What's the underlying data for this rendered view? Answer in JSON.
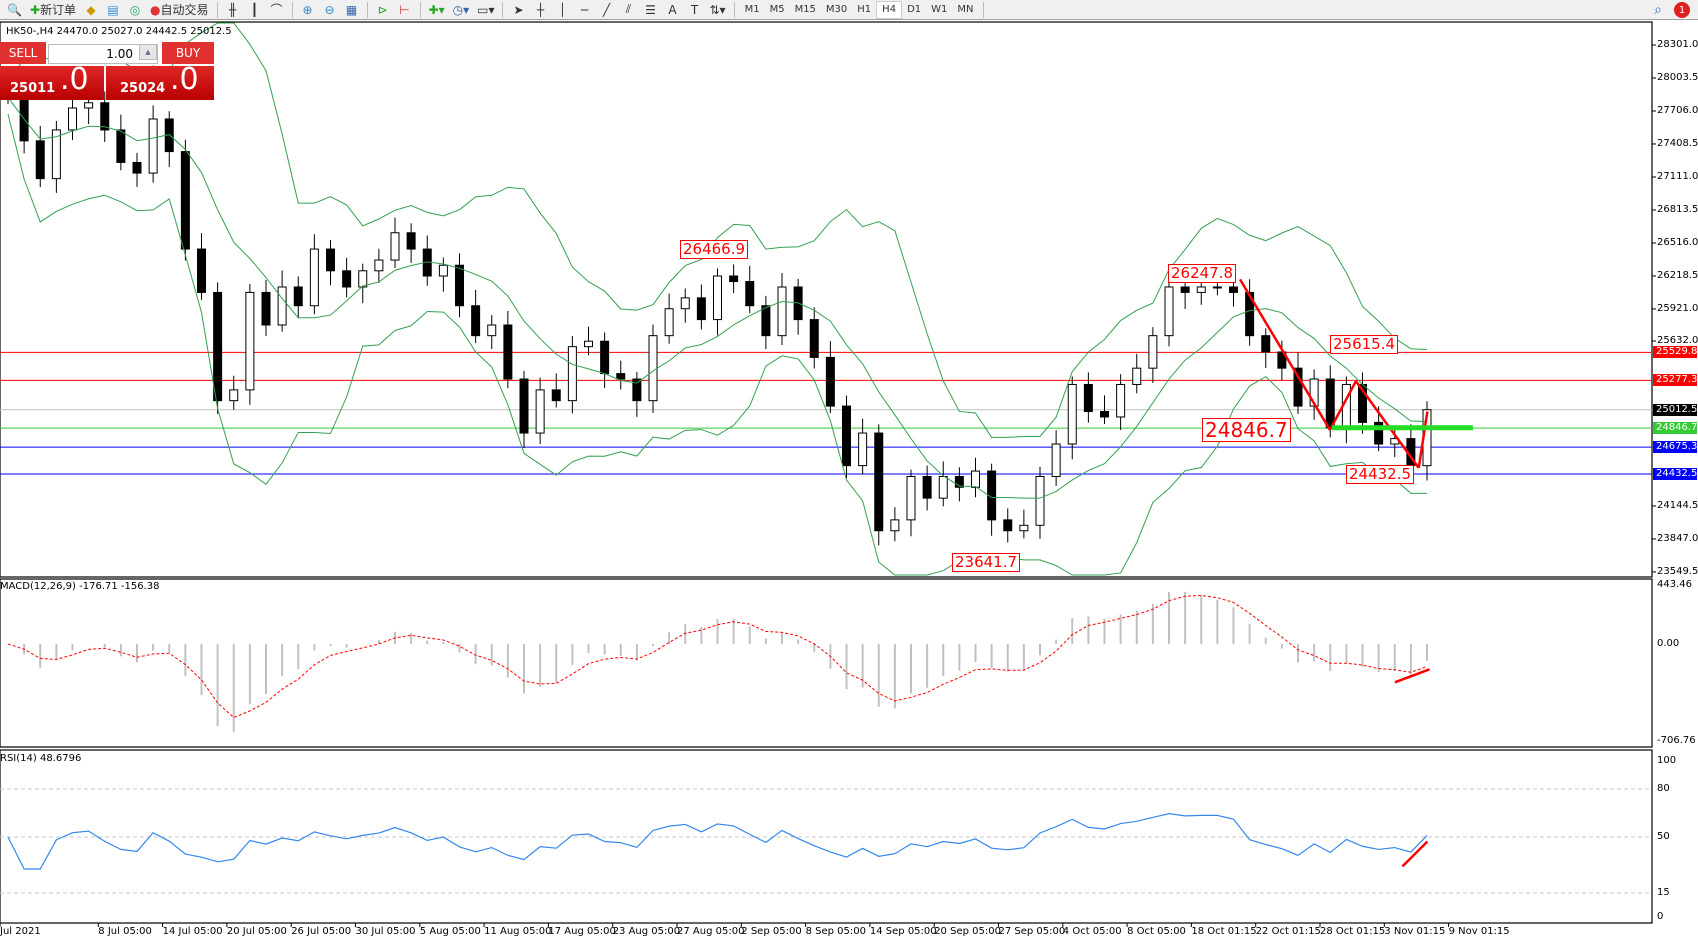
{
  "toolbar": {
    "new_order": "新订单",
    "auto_trading": "自动交易",
    "timeframes": [
      "M1",
      "M5",
      "M15",
      "M30",
      "H1",
      "H4",
      "D1",
      "W1",
      "MN"
    ],
    "active_timeframe": "H4",
    "notification_count": "1"
  },
  "chart": {
    "header": "HK50-,H4  24470.0 25027.0 24442.5 25012.5",
    "symbol": "HK50-",
    "timeframe": "H4",
    "ohlc": {
      "open": 24470.0,
      "high": 25027.0,
      "low": 24442.5,
      "close": 25012.5
    },
    "closes": [
      27828,
      27437,
      27096,
      27535,
      27733,
      27780,
      27535,
      27242,
      27146,
      27634,
      27340,
      26461,
      26070,
      25094,
      25191,
      26070,
      25776,
      26119,
      25950,
      26461,
      26265,
      26119,
      26265,
      26362,
      26608,
      26461,
      26218,
      26315,
      25950,
      25680,
      25776,
      25289,
      24802,
      25191,
      25094,
      25581,
      25630,
      25338,
      25289,
      25094,
      25680,
      25923,
      26021,
      25825,
      26218,
      26168,
      25950,
      25680,
      26119,
      25825,
      25484,
      25045,
      24508,
      24802,
      23921,
      24019,
      24410,
      24215,
      24410,
      24313,
      24459,
      24019,
      23921,
      23970,
      24410,
      24703,
      25240,
      24996,
      24947,
      25240,
      25387,
      25680,
      26119,
      26070,
      26119,
      26119,
      26070,
      25680,
      25533,
      25387,
      25045,
      25289,
      24849,
      25240,
      24898,
      24703,
      24752,
      24508,
      25012.5
    ],
    "price_axis": [
      "28301.0",
      "28003.5",
      "27706.0",
      "27408.5",
      "27111.0",
      "26813.5",
      "26516.0",
      "26218.5",
      "25921.0",
      "25632.0",
      "24144.5",
      "23847.0",
      "23549.5"
    ],
    "levels": [
      {
        "price": "25529.8",
        "color": "#ff0000"
      },
      {
        "price": "25277.3",
        "color": "#ff0000"
      },
      {
        "price": "25012.5",
        "color": "#000000",
        "line": "#c0c0c0"
      },
      {
        "price": "24846.7",
        "color": "#33cc33"
      },
      {
        "price": "24675.3",
        "color": "#0000ff"
      },
      {
        "price": "24432.5",
        "color": "#0000ff"
      }
    ],
    "annotations": [
      "26466.9",
      "26247.8",
      "25615.4",
      "24846.7",
      "24432.5",
      "23641.7"
    ],
    "band_color": "#33a050"
  },
  "oneclick": {
    "sell": "SELL",
    "buy": "BUY",
    "lot": "1.00",
    "bid_main": "25011",
    "bid_frac": ".0",
    "ask_main": "25024",
    "ask_frac": ".0"
  },
  "macd": {
    "label": "MACD(12,26,9) -176.71 -156.38",
    "axis": [
      "443.46",
      "0.00",
      "-706.76"
    ]
  },
  "rsi": {
    "label": "RSI(14) 48.6796",
    "axis": [
      "100",
      "80",
      "50",
      "15",
      "0"
    ],
    "line_color": "#3388ee"
  },
  "dates": [
    "Jul 2021",
    "8 Jul 05:00",
    "14 Jul 05:00",
    "20 Jul 05:00",
    "26 Jul 05:00",
    "30 Jul 05:00",
    "5 Aug 05:00",
    "11 Aug 05:00",
    "17 Aug 05:00",
    "23 Aug 05:00",
    "27 Aug 05:00",
    "2 Sep 05:00",
    "8 Sep 05:00",
    "14 Sep 05:00",
    "20 Sep 05:00",
    "27 Sep 05:00",
    "4 Oct 05:00",
    "8 Oct 05:00",
    "18 Oct 01:15",
    "22 Oct 01:15",
    "28 Oct 01:15",
    "3 Nov 01:15",
    "9 Nov 01:15"
  ]
}
